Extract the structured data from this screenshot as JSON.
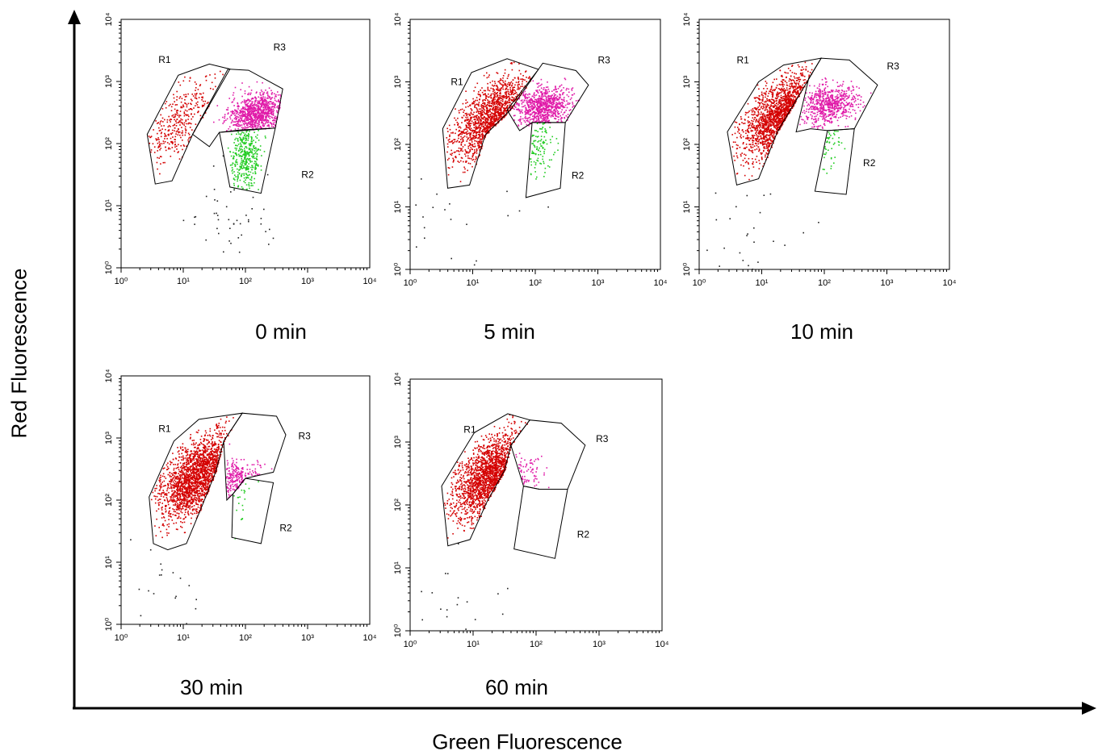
{
  "figure": {
    "y_axis_title": "Red Fluorescence",
    "x_axis_title": "Green Fluorescence"
  },
  "colors": {
    "R1": "#d40000",
    "R3": "#e01aa8",
    "R2": "#22cc22",
    "outside": "#222222"
  },
  "chart_data": [
    {
      "type": "scatter",
      "panel_label": "0 min",
      "xscale": "log",
      "yscale": "log",
      "xlim": [
        1,
        10000
      ],
      "ylim": [
        1,
        10000
      ],
      "x_ticks": [
        "10⁰",
        "10¹",
        "10²",
        "10³",
        "10⁴"
      ],
      "y_ticks": [
        "10⁰",
        "10¹",
        "10²",
        "10³",
        "10⁴"
      ],
      "regions": [
        "R1",
        "R2",
        "R3"
      ],
      "populations": [
        {
          "region": "R1",
          "center": [
            9,
            230
          ],
          "count": 340
        },
        {
          "region": "R3",
          "center": [
            150,
            320
          ],
          "count": 900
        },
        {
          "region": "R2",
          "center": [
            100,
            60
          ],
          "count": 380
        },
        {
          "region": "outside",
          "center": [
            60,
            8
          ],
          "count": 45
        }
      ]
    },
    {
      "type": "scatter",
      "panel_label": "5 min",
      "xscale": "log",
      "yscale": "log",
      "xlim": [
        1,
        10000
      ],
      "ylim": [
        1,
        10000
      ],
      "x_ticks": [
        "10⁰",
        "10¹",
        "10²",
        "10³",
        "10⁴"
      ],
      "y_ticks": [
        "10⁰",
        "10¹",
        "10²",
        "10³",
        "10⁴"
      ],
      "regions": [
        "R1",
        "R2",
        "R3"
      ],
      "populations": [
        {
          "region": "R1",
          "center": [
            20,
            260
          ],
          "count": 1300
        },
        {
          "region": "R3",
          "center": [
            130,
            400
          ],
          "count": 800
        },
        {
          "region": "R2",
          "center": [
            115,
            110
          ],
          "count": 110
        },
        {
          "region": "outside",
          "center": [
            8,
            4
          ],
          "count": 25
        }
      ]
    },
    {
      "type": "scatter",
      "panel_label": "10 min",
      "xscale": "log",
      "yscale": "log",
      "xlim": [
        1,
        10000
      ],
      "ylim": [
        1,
        10000
      ],
      "x_ticks": [
        "10⁰",
        "10¹",
        "10²",
        "10³",
        "10⁴"
      ],
      "y_ticks": [
        "10⁰",
        "10¹",
        "10²",
        "10³",
        "10⁴"
      ],
      "regions": [
        "R1",
        "R2",
        "R3"
      ],
      "populations": [
        {
          "region": "R1",
          "center": [
            22,
            300
          ],
          "count": 1500
        },
        {
          "region": "R3",
          "center": [
            120,
            450
          ],
          "count": 650
        },
        {
          "region": "R2",
          "center": [
            115,
            140
          ],
          "count": 45
        },
        {
          "region": "outside",
          "center": [
            4,
            6
          ],
          "count": 25
        }
      ]
    },
    {
      "type": "scatter",
      "panel_label": "30 min",
      "xscale": "log",
      "yscale": "log",
      "xlim": [
        1,
        10000
      ],
      "ylim": [
        1,
        10000
      ],
      "x_ticks": [
        "10⁰",
        "10¹",
        "10²",
        "10³",
        "10⁴"
      ],
      "y_ticks": [
        "10⁰",
        "10¹",
        "10²",
        "10³",
        "10⁴"
      ],
      "regions": [
        "R1",
        "R2",
        "R3"
      ],
      "populations": [
        {
          "region": "R1",
          "center": [
            18,
            250
          ],
          "count": 1900
        },
        {
          "region": "R3",
          "center": [
            60,
            220
          ],
          "count": 220
        },
        {
          "region": "R2",
          "center": [
            70,
            110
          ],
          "count": 20
        },
        {
          "region": "outside",
          "center": [
            5,
            5
          ],
          "count": 20
        }
      ]
    },
    {
      "type": "scatter",
      "panel_label": "60 min",
      "xscale": "log",
      "yscale": "log",
      "xlim": [
        1,
        10000
      ],
      "ylim": [
        1,
        10000
      ],
      "x_ticks": [
        "10⁰",
        "10¹",
        "10²",
        "10³",
        "10⁴"
      ],
      "y_ticks": [
        "10⁰",
        "10¹",
        "10²",
        "10³",
        "10⁴"
      ],
      "regions": [
        "R1",
        "R2",
        "R3"
      ],
      "populations": [
        {
          "region": "R1",
          "center": [
            20,
            300
          ],
          "count": 1700
        },
        {
          "region": "R3",
          "center": [
            50,
            300
          ],
          "count": 70
        },
        {
          "region": "R2",
          "center": [
            100,
            120
          ],
          "count": 0
        },
        {
          "region": "outside",
          "center": [
            4,
            4
          ],
          "count": 20
        }
      ]
    }
  ]
}
